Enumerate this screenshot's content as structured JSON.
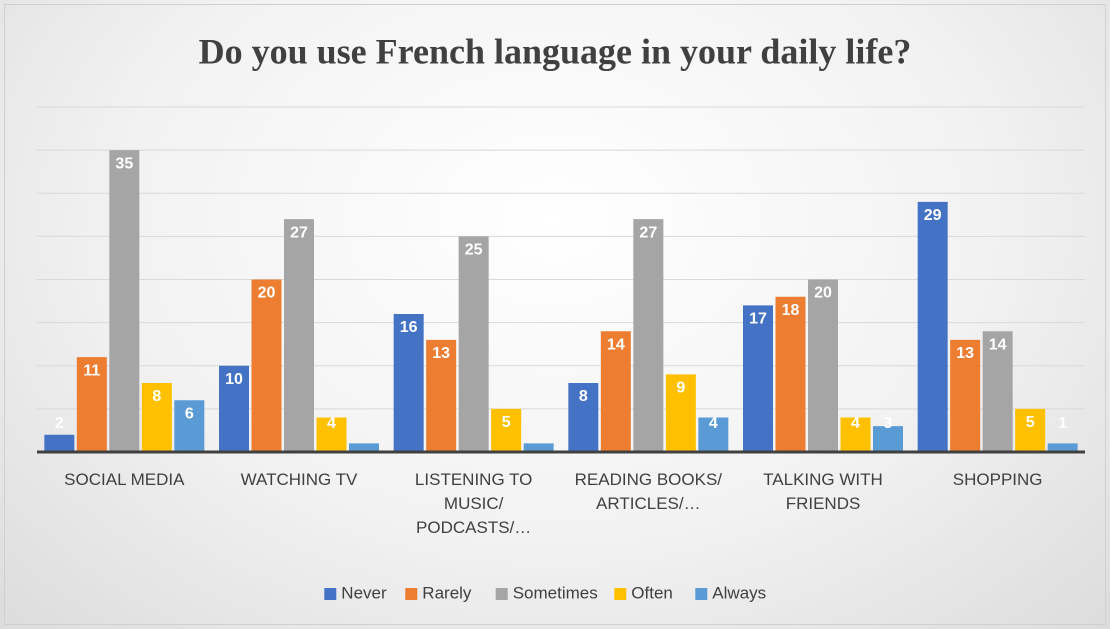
{
  "chart_data": {
    "type": "bar",
    "title": "Do you use French language in your daily life?",
    "categories": [
      "SOCIAL MEDIA",
      "WATCHING TV",
      "LISTENING TO MUSIC/ PODCASTS/…",
      "READING BOOKS/ ARTICLES/…",
      "TALKING WITH FRIENDS",
      "SHOPPING"
    ],
    "series": [
      {
        "name": "Never",
        "color": "#4472c4",
        "values": [
          2,
          10,
          16,
          8,
          17,
          29
        ],
        "value_labels": [
          "2",
          "10",
          "16",
          "8",
          "17",
          "29"
        ]
      },
      {
        "name": "Rarely",
        "color": "#ed7d31",
        "values": [
          11,
          20,
          13,
          14,
          18,
          13
        ],
        "value_labels": [
          "11",
          "20",
          "13",
          "14",
          "18",
          "13"
        ]
      },
      {
        "name": "Sometimes",
        "color": "#a5a5a5",
        "values": [
          35,
          27,
          25,
          27,
          20,
          14
        ],
        "value_labels": [
          "35",
          "27",
          "25",
          "27",
          "20",
          "14"
        ]
      },
      {
        "name": "Often",
        "color": "#ffc000",
        "values": [
          8,
          4,
          5,
          9,
          4,
          5
        ],
        "value_labels": [
          "8",
          "4",
          "5",
          "9",
          "4",
          "5"
        ]
      },
      {
        "name": "Always",
        "color": "#5b9bd5",
        "values": [
          6,
          1,
          1,
          4,
          3,
          1
        ],
        "value_labels": [
          "6",
          null,
          null,
          "4",
          "3",
          "1"
        ]
      }
    ],
    "ylim": [
      0,
      40
    ],
    "yticks": [
      0,
      5,
      10,
      15,
      20,
      25,
      30,
      35,
      40
    ],
    "grid": true,
    "legend": "bottom"
  }
}
